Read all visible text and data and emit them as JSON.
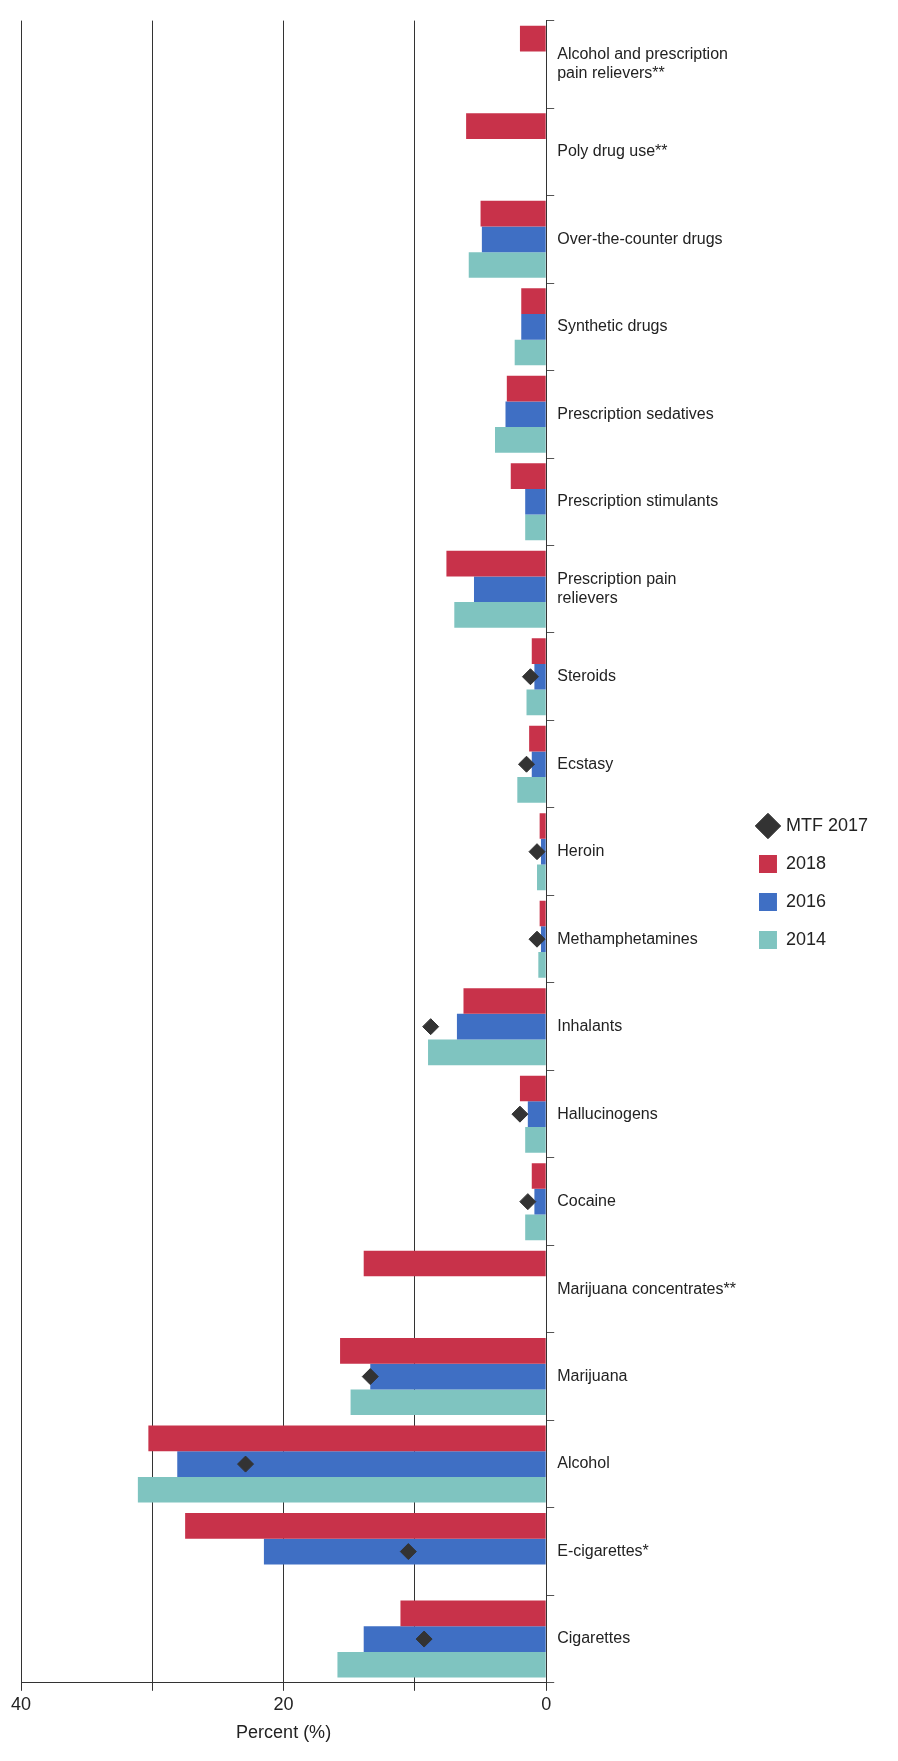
{
  "chart_data": {
    "type": "bar",
    "orientation": "horizontal",
    "xlabel": "Percent (%)",
    "categories": [
      "Alcohol and prescription pain relievers**",
      "Poly drug use**",
      "Over-the-counter drugs",
      "Synthetic drugs",
      "Prescription sedatives",
      "Prescription stimulants",
      "Prescription pain relievers",
      "Steroids",
      "Ecstasy",
      "Heroin",
      "Methamphetamines",
      "Inhalants",
      "Hallucinogens",
      "Cocaine",
      "Marijuana concentrates**",
      "Marijuana",
      "Alcohol",
      "E-cigarettes*",
      "Cigarettes"
    ],
    "series": [
      {
        "name": "2018",
        "color": "#c8324a",
        "values": [
          2.0,
          6.1,
          5.0,
          1.9,
          3.0,
          2.7,
          7.6,
          1.1,
          1.3,
          0.5,
          0.5,
          6.3,
          2.0,
          1.1,
          13.9,
          15.7,
          30.3,
          27.5,
          11.1
        ]
      },
      {
        "name": "2016",
        "color": "#3f6fc4",
        "values": [
          null,
          null,
          4.9,
          1.9,
          3.1,
          1.6,
          5.5,
          0.9,
          1.1,
          0.4,
          0.4,
          6.8,
          1.4,
          0.9,
          null,
          13.4,
          28.1,
          21.5,
          13.9
        ]
      },
      {
        "name": "2014",
        "color": "#7fc4c0",
        "values": [
          null,
          null,
          5.9,
          2.4,
          3.9,
          1.6,
          7.0,
          1.5,
          2.2,
          0.7,
          0.6,
          9.0,
          1.6,
          1.6,
          null,
          14.9,
          31.1,
          null,
          15.9
        ]
      },
      {
        "name": "MTF 2017",
        "type": "scatter",
        "color": "#333333",
        "marker": "diamond",
        "values": [
          null,
          null,
          null,
          null,
          null,
          null,
          null,
          1.2,
          1.5,
          0.7,
          0.7,
          8.8,
          2.0,
          1.4,
          null,
          13.4,
          22.9,
          10.5,
          9.3
        ]
      }
    ],
    "xlim": [
      40,
      0
    ],
    "xticks": [
      40,
      {
        "value": 30,
        "label": null
      },
      20,
      {
        "value": 10,
        "label": null
      },
      0
    ],
    "grid": "x",
    "legend": "right"
  }
}
